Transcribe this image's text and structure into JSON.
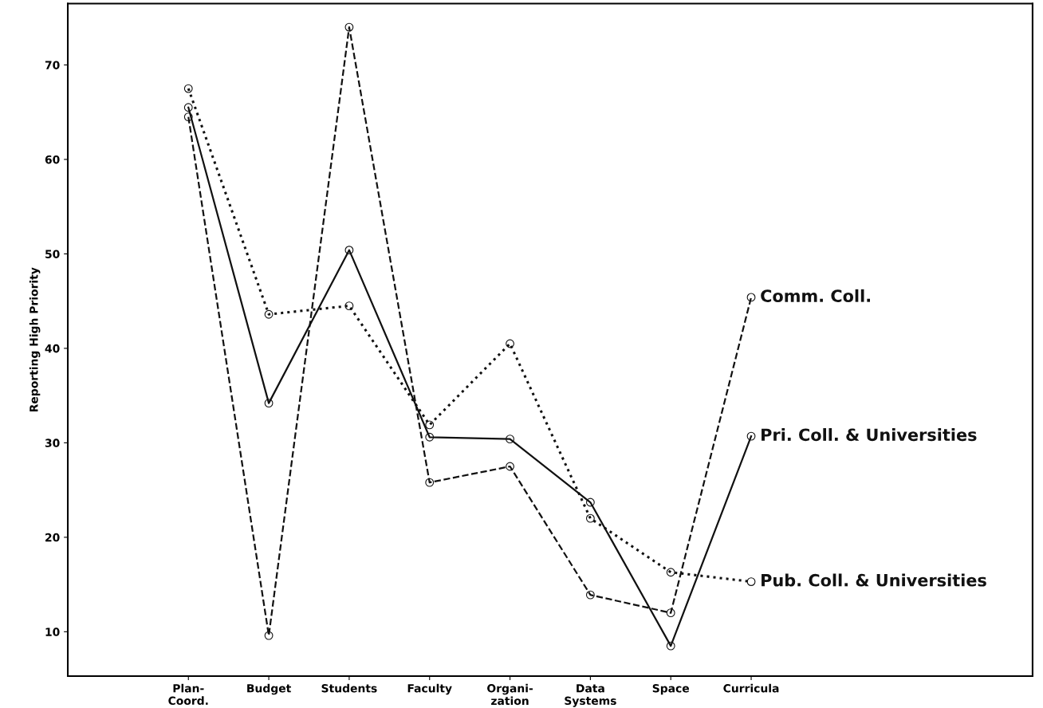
{
  "chart_data": {
    "type": "line",
    "ylabel": "Reporting High Priority",
    "categories": [
      "Plan-\nCoord.",
      "Budget",
      "Students",
      "Faculty",
      "Organi-\nzation",
      "Data\nSystems",
      "Space",
      "Curricula"
    ],
    "series": [
      {
        "name": "Comm. Coll.",
        "color": "#111111",
        "line_style": "dashed",
        "values": [
          64.5,
          9.6,
          74.0,
          25.8,
          27.5,
          13.9,
          12.0,
          45.4
        ]
      },
      {
        "name": "Pri. Coll. & Universities",
        "color": "#111111",
        "line_style": "solid",
        "values": [
          65.5,
          34.2,
          50.4,
          30.6,
          30.4,
          23.7,
          8.5,
          30.7
        ]
      },
      {
        "name": "Pub. Coll. & Universities",
        "color": "#111111",
        "line_style": "dotted",
        "values": [
          67.5,
          43.6,
          44.5,
          31.9,
          40.5,
          22.0,
          16.3,
          15.3
        ]
      }
    ],
    "ylim": [
      5.3,
      76.5
    ],
    "yticks": [
      10,
      20,
      30,
      40,
      50,
      60,
      70
    ],
    "marker": "circle",
    "grid": false,
    "legend": false
  }
}
